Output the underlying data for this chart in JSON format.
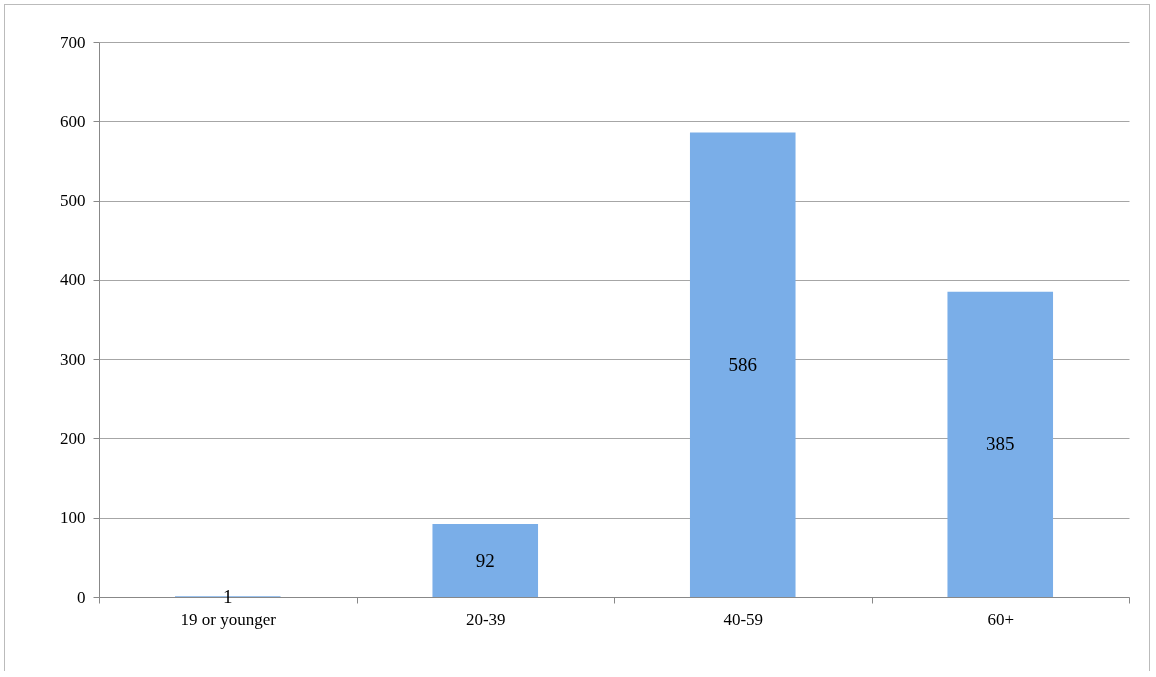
{
  "chart_data": {
    "type": "bar",
    "categories": [
      "19 or younger",
      "20-39",
      "40-59",
      "60+"
    ],
    "values": [
      1,
      92,
      586,
      385
    ],
    "color": "#7aaee8",
    "ylim": [
      0,
      700
    ],
    "yticks": [
      0,
      100,
      200,
      300,
      400,
      500,
      600,
      700
    ],
    "grid": "y",
    "data_labels": true
  }
}
